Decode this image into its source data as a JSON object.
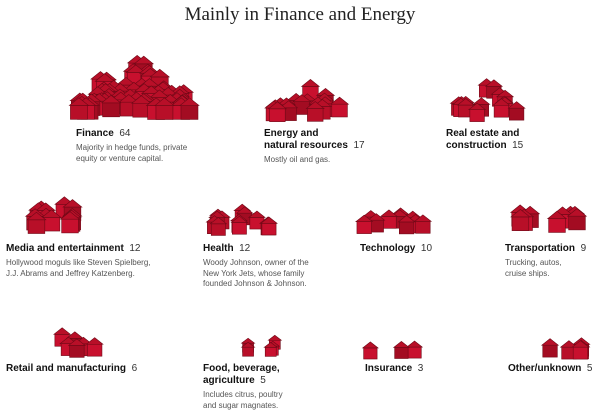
{
  "title": "Mainly in Finance and Energy",
  "colors": {
    "house_light": "#c8102e",
    "house_mid": "#a30c22",
    "house_dark": "#6f0816",
    "roof": "#b80f28"
  },
  "chart_data": {
    "type": "pictogram",
    "title": "Mainly in Finance and Energy",
    "unit": "houses",
    "categories": [
      {
        "name": "Finance",
        "name_line2": "",
        "count": 64,
        "desc": [
          "Majority in hedge funds, private",
          "equity or venture capital."
        ]
      },
      {
        "name": "Energy and",
        "name_line2": "natural resources",
        "count": 17,
        "desc": [
          "Mostly oil and gas."
        ]
      },
      {
        "name": "Real estate and",
        "name_line2": "construction",
        "count": 15,
        "desc": []
      },
      {
        "name": "Media and entertainment",
        "name_line2": "",
        "count": 12,
        "desc": [
          "Hollywood moguls like Steven Spielberg,",
          "J.J. Abrams and Jeffrey Katzenberg."
        ]
      },
      {
        "name": "Health",
        "name_line2": "",
        "count": 12,
        "desc": [
          "Woody Johnson, owner of the",
          "New York Jets, whose family",
          "founded Johnson & Johnson."
        ]
      },
      {
        "name": "Technology",
        "name_line2": "",
        "count": 10,
        "desc": []
      },
      {
        "name": "Transportation",
        "name_line2": "",
        "count": 9,
        "desc": [
          "Trucking, autos,",
          "cruise ships."
        ]
      },
      {
        "name": "Retail and manufacturing",
        "name_line2": "",
        "count": 6,
        "desc": []
      },
      {
        "name": "Food, beverage,",
        "name_line2": "agriculture",
        "count": 5,
        "desc": [
          "Includes citrus, poultry",
          "and sugar magnates."
        ]
      },
      {
        "name": "Insurance",
        "name_line2": "",
        "count": 3,
        "desc": []
      },
      {
        "name": "Other/unknown",
        "name_line2": "",
        "count": 5,
        "desc": []
      }
    ]
  }
}
